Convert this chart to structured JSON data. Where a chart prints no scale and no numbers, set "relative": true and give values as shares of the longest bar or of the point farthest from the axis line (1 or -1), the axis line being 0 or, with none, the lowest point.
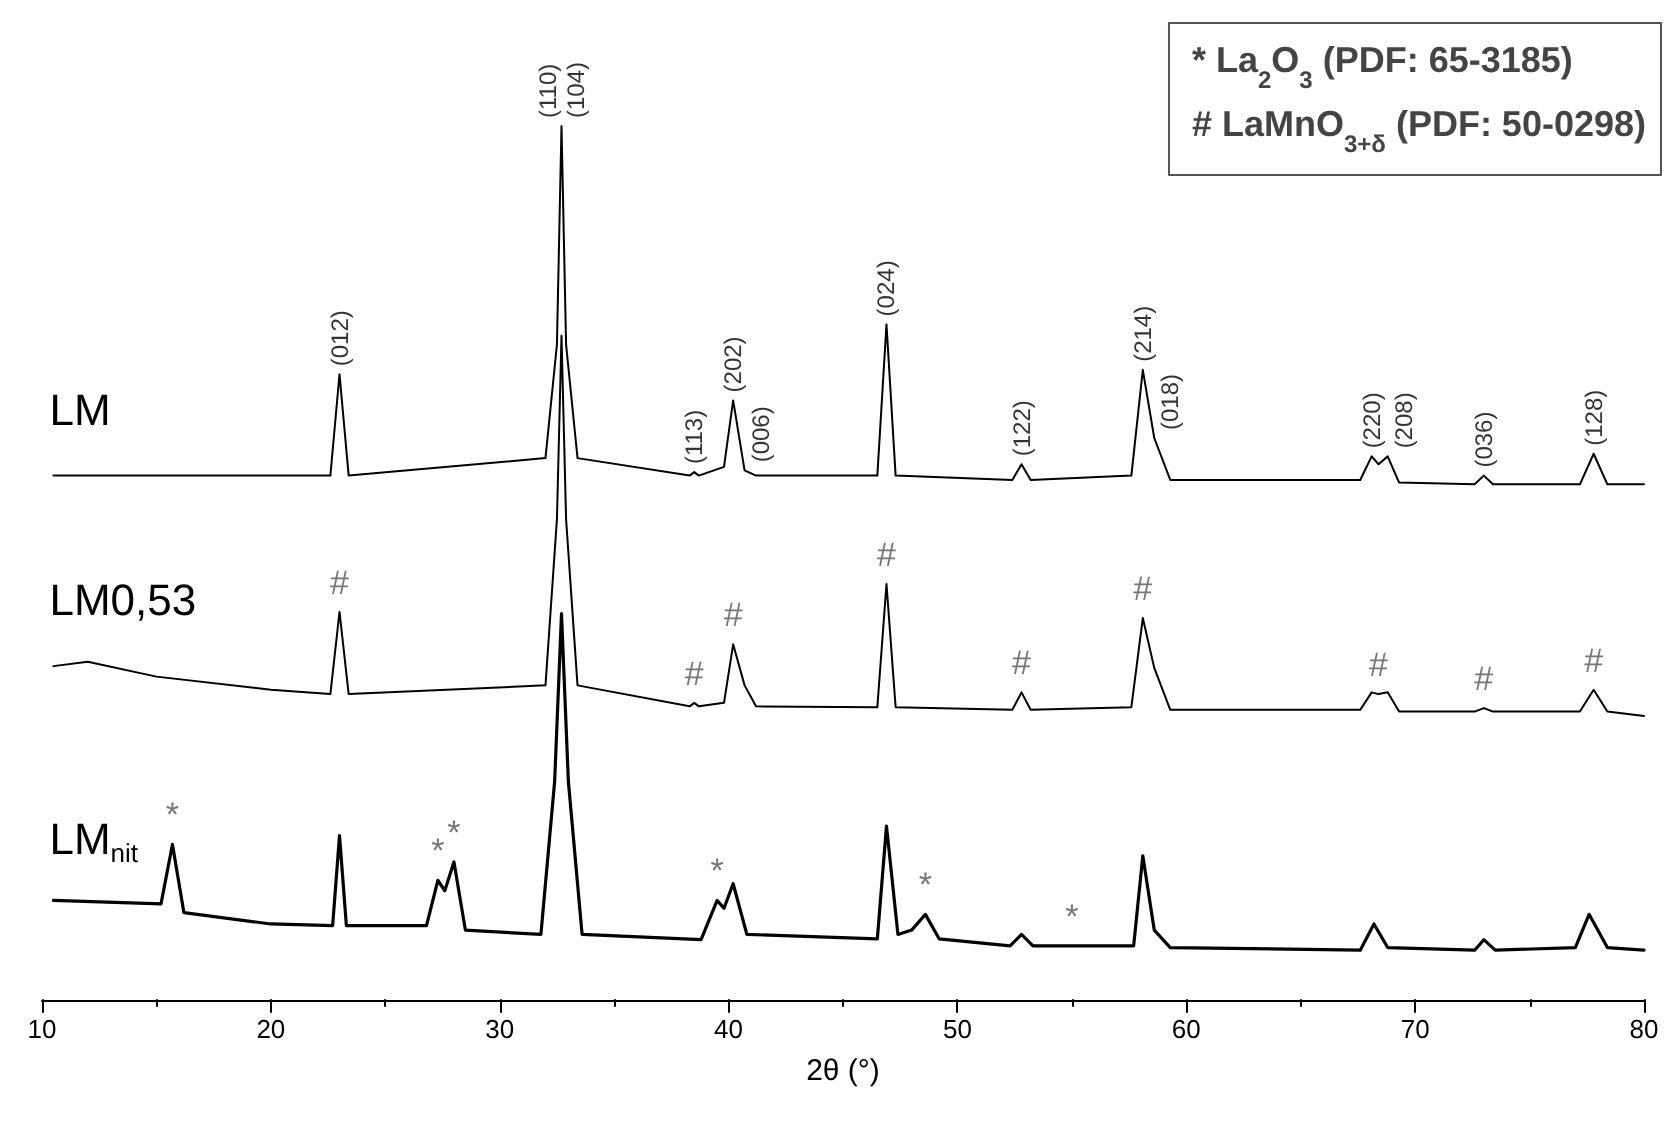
{
  "chart_data": {
    "type": "line",
    "relative": true,
    "xlabel": "2θ (°)",
    "xlim": [
      10,
      80
    ],
    "xticks": [
      10,
      20,
      30,
      40,
      50,
      60,
      70,
      80
    ],
    "grid": false,
    "legend": false,
    "marker": "none",
    "line_style": "solid",
    "series": [
      {
        "name": "LM",
        "color": "#000000",
        "x": [
          10.5,
          22.6,
          23.0,
          23.4,
          32.0,
          32.5,
          32.7,
          32.9,
          33.4,
          38.3,
          38.5,
          38.7,
          39.8,
          40.2,
          40.7,
          41.2,
          46.5,
          46.9,
          47.3,
          52.4,
          52.8,
          53.2,
          57.6,
          58.1,
          58.6,
          59.3,
          67.6,
          68.1,
          68.4,
          68.8,
          69.3,
          72.6,
          73.0,
          73.4,
          77.2,
          77.8,
          78.4,
          80
        ],
        "values": [
          0.6,
          0.6,
          0.716,
          0.6,
          0.62,
          0.75,
          1.0,
          0.75,
          0.62,
          0.6,
          0.604,
          0.6,
          0.61,
          0.686,
          0.606,
          0.6,
          0.6,
          0.773,
          0.6,
          0.595,
          0.613,
          0.595,
          0.6,
          0.721,
          0.643,
          0.595,
          0.595,
          0.622,
          0.613,
          0.622,
          0.592,
          0.59,
          0.6,
          0.59,
          0.59,
          0.625,
          0.59,
          0.59
        ]
      },
      {
        "name": "LM0,53",
        "color": "#000000",
        "x": [
          10.5,
          12,
          15,
          20,
          22.6,
          23.0,
          23.4,
          32.0,
          32.5,
          32.7,
          32.9,
          33.4,
          38.3,
          38.5,
          38.7,
          39.8,
          40.2,
          40.7,
          41.2,
          46.5,
          46.9,
          47.3,
          52.4,
          52.8,
          53.2,
          57.6,
          58.1,
          58.6,
          59.3,
          67.6,
          68.1,
          68.4,
          68.8,
          69.3,
          72.6,
          73.0,
          73.4,
          77.2,
          77.8,
          78.4,
          80
        ],
        "values": [
          0.382,
          0.387,
          0.37,
          0.355,
          0.35,
          0.444,
          0.35,
          0.36,
          0.55,
          0.76,
          0.55,
          0.36,
          0.336,
          0.34,
          0.336,
          0.34,
          0.407,
          0.36,
          0.336,
          0.335,
          0.476,
          0.335,
          0.332,
          0.352,
          0.332,
          0.335,
          0.437,
          0.38,
          0.332,
          0.332,
          0.352,
          0.35,
          0.352,
          0.33,
          0.33,
          0.334,
          0.33,
          0.33,
          0.355,
          0.33,
          0.325
        ]
      },
      {
        "name": "LM$_{nit}$",
        "color": "#000000",
        "x": [
          10.5,
          15.2,
          15.7,
          16.2,
          20,
          22.7,
          23.0,
          23.3,
          26.8,
          27.3,
          27.6,
          28.0,
          28.5,
          31.8,
          32.4,
          32.7,
          33.0,
          33.6,
          38.8,
          39.5,
          39.8,
          40.2,
          40.8,
          46.5,
          46.9,
          47.4,
          48.0,
          48.6,
          49.2,
          52.3,
          52.8,
          53.3,
          55,
          57.7,
          58.1,
          58.6,
          59.3,
          67.6,
          68.2,
          68.8,
          72.6,
          73.0,
          73.5,
          77.0,
          77.6,
          78.4,
          80
        ],
        "values": [
          0.114,
          0.11,
          0.178,
          0.1,
          0.087,
          0.085,
          0.188,
          0.085,
          0.085,
          0.137,
          0.125,
          0.158,
          0.08,
          0.075,
          0.25,
          0.442,
          0.25,
          0.075,
          0.069,
          0.114,
          0.105,
          0.133,
          0.075,
          0.07,
          0.199,
          0.075,
          0.08,
          0.098,
          0.07,
          0.062,
          0.075,
          0.062,
          0.062,
          0.062,
          0.165,
          0.08,
          0.06,
          0.057,
          0.087,
          0.06,
          0.057,
          0.069,
          0.057,
          0.06,
          0.098,
          0.06,
          0.057
        ]
      }
    ],
    "annotations": [
      "* La$_{2}$O$_{3}$ (PDF: 65-3185)",
      "# LaMnO$_{3+δ}$ (PDF: 50-0298)",
      {
        "text": "(012)",
        "x": 23.0,
        "y": 0.716
      },
      {
        "text": "(110)",
        "x": 32.7,
        "y": 1.0
      },
      {
        "text": "(104)",
        "x": 32.7,
        "y": 1.0
      },
      {
        "text": "(113)",
        "x": 38.5,
        "y": 0.604
      },
      {
        "text": "(202)",
        "x": 40.2,
        "y": 0.686
      },
      {
        "text": "(006)",
        "x": 40.7,
        "y": 0.606
      },
      {
        "text": "(024)",
        "x": 46.9,
        "y": 0.773
      },
      {
        "text": "(122)",
        "x": 52.8,
        "y": 0.613
      },
      {
        "text": "(214)",
        "x": 58.1,
        "y": 0.721
      },
      {
        "text": "(018)",
        "x": 58.6,
        "y": 0.643
      },
      {
        "text": "(220)",
        "x": 68.1,
        "y": 0.622
      },
      {
        "text": "(208)",
        "x": 68.8,
        "y": 0.622
      },
      {
        "text": "(036)",
        "x": 73.0,
        "y": 0.6
      },
      {
        "text": "(128)",
        "x": 77.8,
        "y": 0.625
      },
      {
        "text": "#",
        "x": 23.0,
        "y": 0.444
      },
      {
        "text": "#",
        "x": 38.5,
        "y": 0.34
      },
      {
        "text": "#",
        "x": 40.2,
        "y": 0.407
      },
      {
        "text": "#",
        "x": 46.9,
        "y": 0.476
      },
      {
        "text": "#",
        "x": 52.8,
        "y": 0.352
      },
      {
        "text": "#",
        "x": 58.1,
        "y": 0.437
      },
      {
        "text": "#",
        "x": 68.4,
        "y": 0.35
      },
      {
        "text": "#",
        "x": 73.0,
        "y": 0.334
      },
      {
        "text": "#",
        "x": 77.8,
        "y": 0.355
      },
      {
        "text": "*",
        "x": 15.7,
        "y": 0.178
      },
      {
        "text": "*",
        "x": 27.3,
        "y": 0.137
      },
      {
        "text": "*",
        "x": 28.0,
        "y": 0.158
      },
      {
        "text": "*",
        "x": 39.5,
        "y": 0.114
      },
      {
        "text": "*",
        "x": 48.6,
        "y": 0.098
      },
      {
        "text": "*",
        "x": 55,
        "y": 0.062
      }
    ]
  }
}
